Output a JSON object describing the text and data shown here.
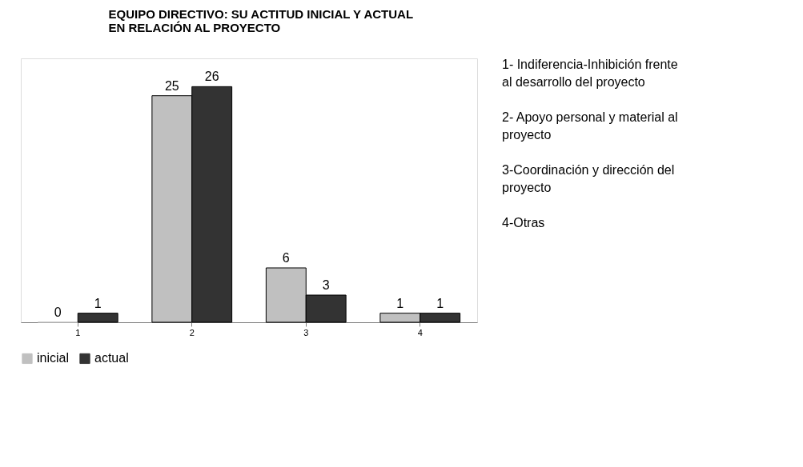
{
  "chart_data": {
    "type": "bar",
    "title": "EQUIPO DIRECTIVO: SU ACTITUD INICIAL Y ACTUAL\nEN RELACIÓN AL PROYECTO",
    "categories": [
      "1",
      "2",
      "3",
      "4"
    ],
    "series": [
      {
        "name": "inicial",
        "color": "#c0c0c0",
        "values": [
          0,
          25,
          6,
          1
        ]
      },
      {
        "name": "actual",
        "color": "#333333",
        "values": [
          1,
          26,
          3,
          1
        ]
      }
    ],
    "data_labels": true,
    "legend": "bottom",
    "tick_labels": "x",
    "annotations": [
      "1- Indiferencia-Inhibición frente al desarrollo del proyecto",
      "2- Apoyo personal y material al proyecto",
      "3-Coordinación y dirección del proyecto",
      "4-Otras"
    ]
  }
}
